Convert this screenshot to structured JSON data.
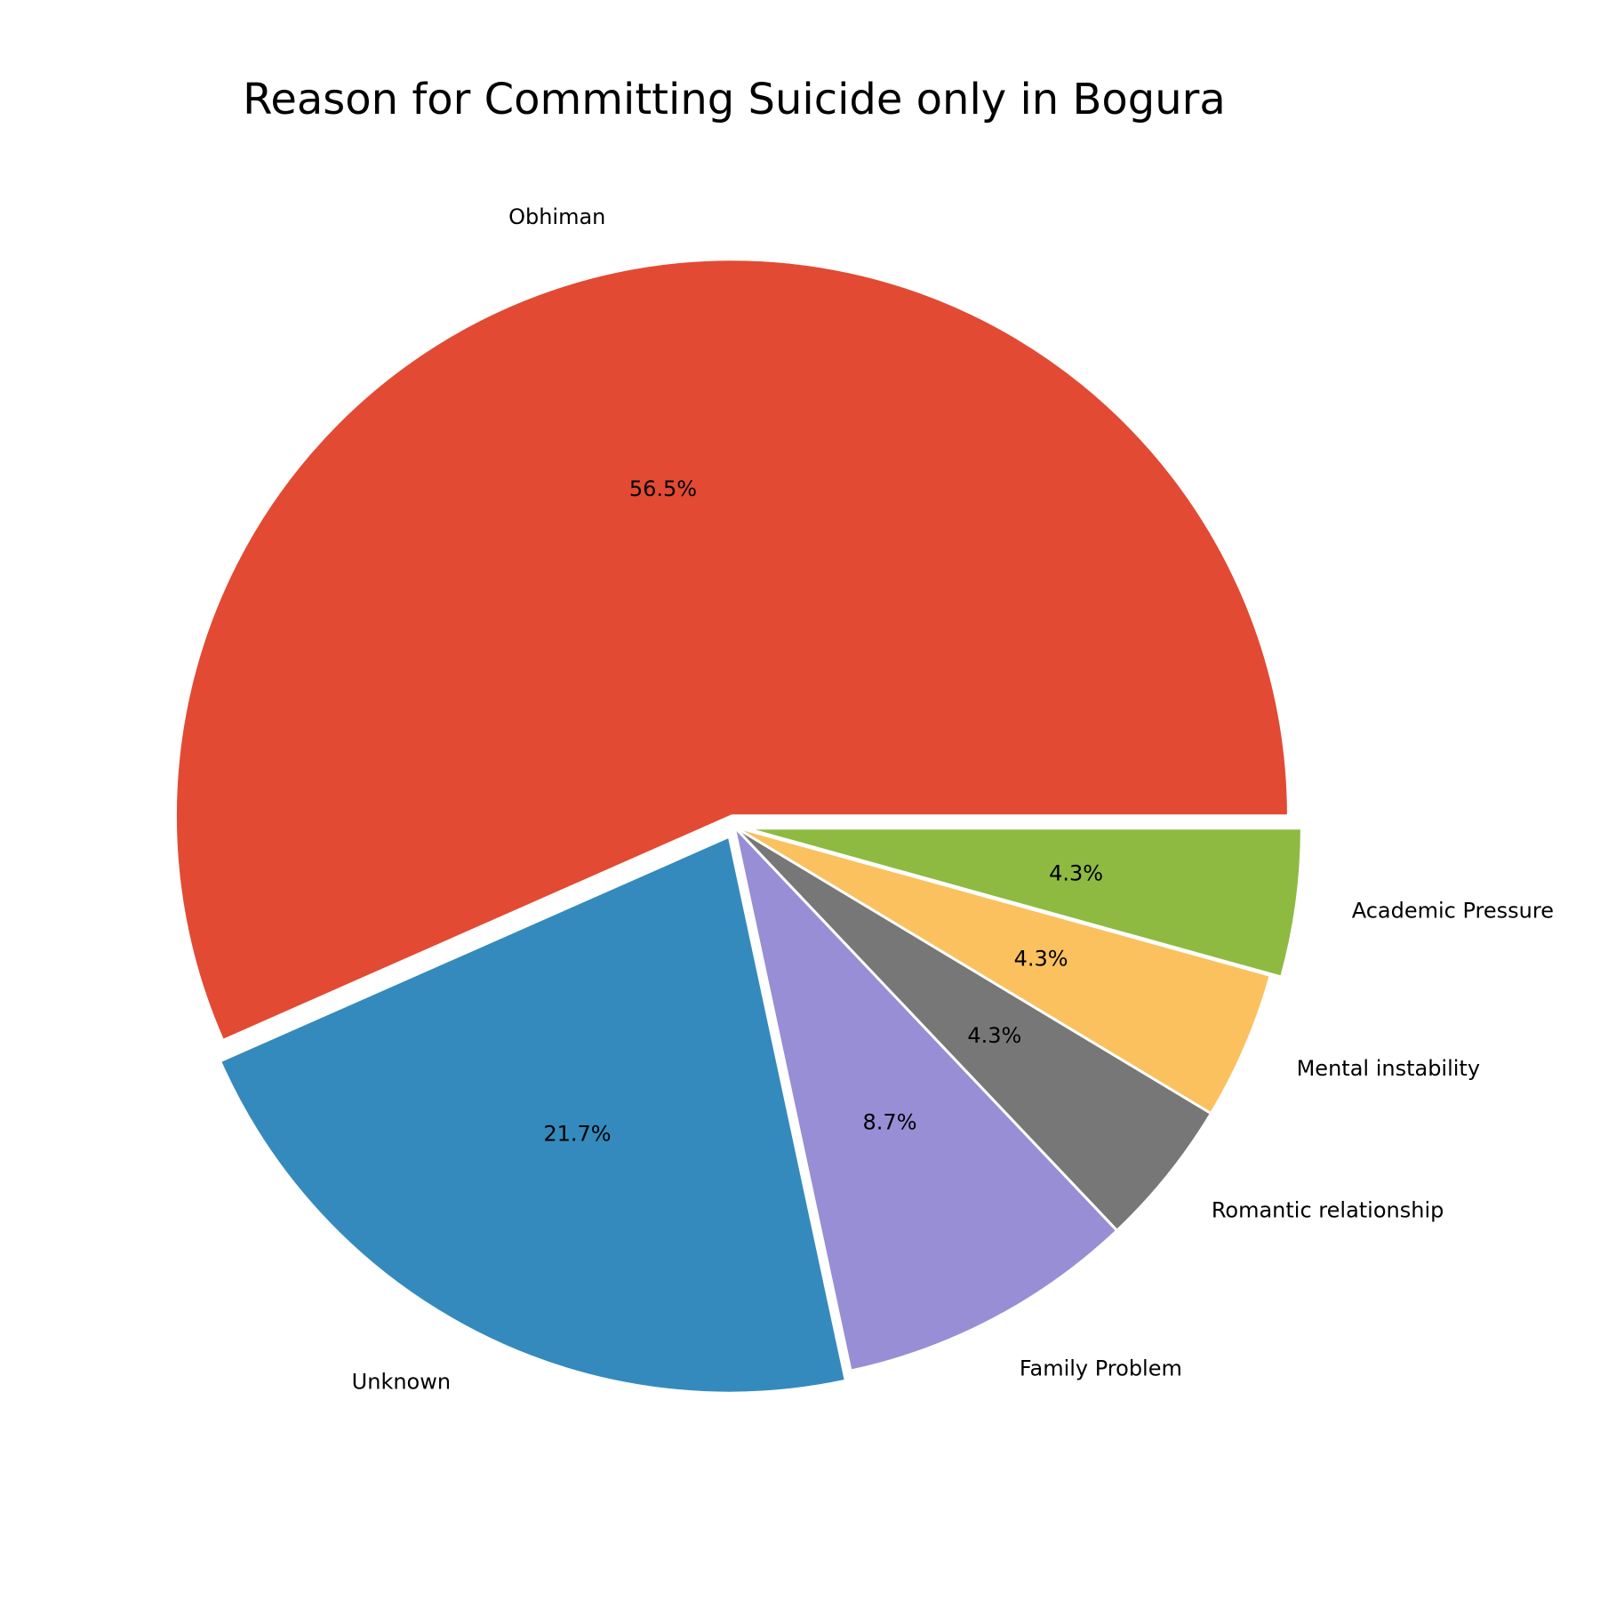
{
  "chart_data": {
    "type": "pie",
    "title": "Reason for Committing Suicide only in Bogura",
    "slices": [
      {
        "label": "Obhiman",
        "value": 56.5,
        "pct_label": "56.5%",
        "color": "#E24A33",
        "exploded": true
      },
      {
        "label": "Unknown",
        "value": 21.7,
        "pct_label": "21.7%",
        "color": "#348ABD",
        "exploded": true
      },
      {
        "label": "Family Problem",
        "value": 8.7,
        "pct_label": "8.7%",
        "color": "#988ED5",
        "exploded": false
      },
      {
        "label": "Romantic relationship",
        "value": 4.3,
        "pct_label": "4.3%",
        "color": "#777777",
        "exploded": false
      },
      {
        "label": "Mental instability",
        "value": 4.3,
        "pct_label": "4.3%",
        "color": "#FBC15E",
        "exploded": false
      },
      {
        "label": "Academic Pressure",
        "value": 4.3,
        "pct_label": "4.3%",
        "color": "#8EBA42",
        "exploded": true
      }
    ],
    "start_angle_deg": 0,
    "direction": "counterclockwise",
    "edge_color": "#ffffff"
  }
}
